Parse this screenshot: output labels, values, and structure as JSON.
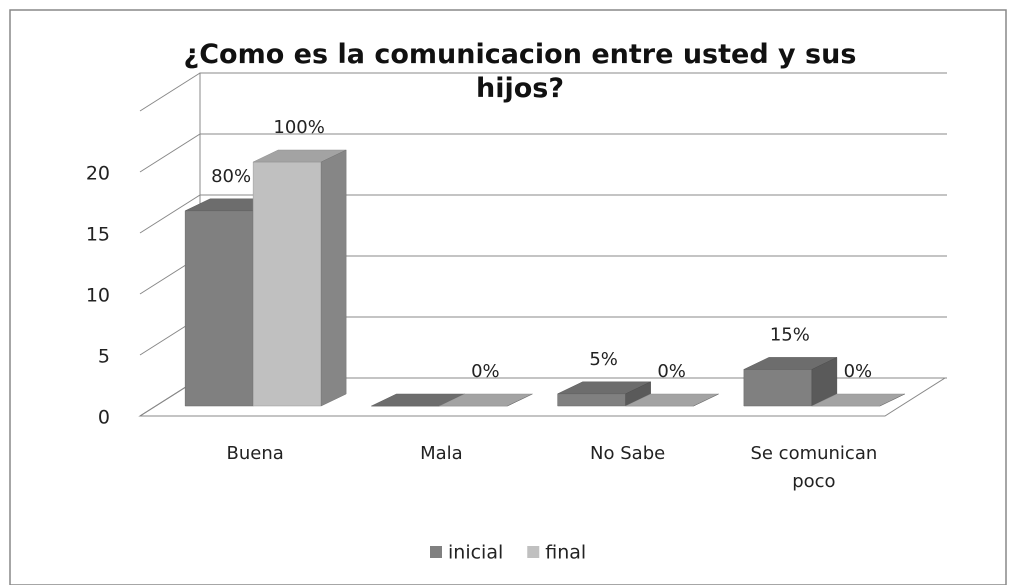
{
  "chart_data": {
    "type": "bar3d",
    "title": "¿Como es la comunicacion entre usted y sus hijos?",
    "categories": [
      "Buena",
      "Mala",
      "No Sabe",
      "Se comunican poco"
    ],
    "series": [
      {
        "name": "inicial",
        "color": "#808080",
        "values": [
          16,
          0,
          1,
          3
        ],
        "value_labels": [
          "80%",
          null,
          "5%",
          "15%"
        ]
      },
      {
        "name": "final",
        "color": "#c0c0c0",
        "values": [
          20,
          0,
          0,
          0
        ],
        "value_labels": [
          "100%",
          "0%",
          "0%",
          "0%"
        ]
      }
    ],
    "ylim": [
      0,
      25
    ],
    "yticks": [
      0,
      5,
      10,
      15,
      20
    ],
    "grid": true,
    "legend": "bottom"
  }
}
